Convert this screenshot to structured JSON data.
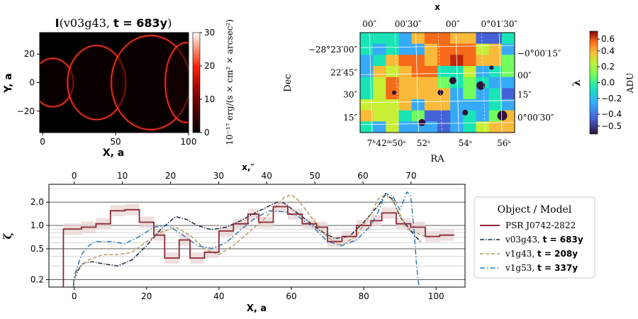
{
  "colors": {
    "psr": "#8b2a35",
    "v03g43": "#1a2b3f",
    "v1g43": "#b89a5a",
    "v1g53": "#2e7ab8",
    "band": "#e8d4d4",
    "hot": "#ff1a00"
  },
  "chart_data": [
    {
      "type": "heatmap",
      "title_main": "I",
      "title_args": "(v03g43, ",
      "title_t": "t = 683y",
      "title_close": ")",
      "xlabel": "X, a",
      "ylabel": "Y, a",
      "xlim": [
        -2,
        100
      ],
      "ylim": [
        -35,
        35
      ],
      "xticks": [
        {
          "value": 0,
          "label": "0"
        },
        {
          "value": 50,
          "label": "50"
        },
        {
          "value": 100,
          "label": "100"
        }
      ],
      "yticks": [
        {
          "value": 20,
          "label": "20"
        },
        {
          "value": 0,
          "label": "0"
        },
        {
          "value": -20,
          "label": "−20"
        }
      ],
      "shells": [
        {
          "cx": 7,
          "rx": 14,
          "ry": 17
        },
        {
          "cx": 37,
          "rx": 20,
          "ry": 26
        },
        {
          "cx": 74,
          "rx": 27,
          "ry": 33
        },
        {
          "cx": 98,
          "rx": 14,
          "ry": 28
        }
      ],
      "colorbar": {
        "label": "10⁻¹⁷ erg/(s × cm² × arcsec²)",
        "range": [
          0,
          30
        ],
        "ticks": [
          {
            "value": 0,
            "label": "0"
          },
          {
            "value": 10,
            "label": "10"
          },
          {
            "value": 20,
            "label": "20"
          },
          {
            "value": 30,
            "label": "30"
          }
        ]
      }
    },
    {
      "type": "heatmap",
      "title": "x",
      "xlabel": "RA",
      "ylabel": "Dec",
      "top_ticks": [
        "00″",
        "00′30″",
        "00″",
        "0°01′30″"
      ],
      "bottom_ticks": [
        "7ʰ42ᵐ50ˢ",
        "52ˢ",
        "54ˢ",
        "56ˢ"
      ],
      "left_ticks": [
        "−28°23′00″",
        "22′45″",
        "30″",
        "15″"
      ],
      "right_ticks": [
        "−0°00′15″",
        "00″",
        "15″",
        "0°00′30″"
      ],
      "colorbar": {
        "symbol": "λ",
        "label": "ADU",
        "range": [
          -0.65,
          0.65
        ],
        "ticks": [
          {
            "value": 0.4,
            "label": "0.4"
          },
          {
            "value": 0.2,
            "label": "0.2"
          },
          {
            "value": 0.0,
            "label": "0.0"
          },
          {
            "value": -0.2,
            "label": "−0.2"
          },
          {
            "value": -0.4,
            "label": "−0.4"
          }
        ],
        "extra_ticks": [
          {
            "value": 0.55,
            "label": "0.6"
          },
          {
            "value": -0.55,
            "label": "−0.5"
          }
        ]
      }
    },
    {
      "type": "line",
      "ylabel": "ζ",
      "xlabel": "X, a",
      "top_label": "x,″",
      "xlim": [
        -7,
        108
      ],
      "ylim_log": [
        0.16,
        3.4
      ],
      "xticks": [
        {
          "value": 0,
          "label": "0"
        },
        {
          "value": 20,
          "label": "20"
        },
        {
          "value": 40,
          "label": "40"
        },
        {
          "value": 60,
          "label": "60"
        },
        {
          "value": 80,
          "label": "80"
        },
        {
          "value": 100,
          "label": "100"
        }
      ],
      "top_ticks": [
        {
          "value": 0,
          "label": "0"
        },
        {
          "value": 10,
          "label": "10"
        },
        {
          "value": 20,
          "label": "20"
        },
        {
          "value": 30,
          "label": "30"
        },
        {
          "value": 40,
          "label": "40"
        },
        {
          "value": 50,
          "label": "50"
        },
        {
          "value": 60,
          "label": "60"
        },
        {
          "value": 70,
          "label": "70"
        }
      ],
      "top_scale": 1.33,
      "yticks": [
        {
          "value": 2.0,
          "label": "2.0"
        },
        {
          "value": 1.0,
          "label": "1.0"
        },
        {
          "value": 0.5,
          "label": "0.5"
        },
        {
          "value": 0.2,
          "label": "0.2"
        }
      ],
      "major_grid": [
        0.2,
        0.5,
        1.0,
        2.0
      ],
      "minor_grid": [
        0.3,
        0.4,
        0.6,
        0.7,
        0.8,
        0.9,
        3.0
      ],
      "psr": {
        "name": "PSR J0742-2822",
        "edges": [
          -3,
          2,
          6,
          10,
          14,
          18,
          22,
          25,
          29,
          32,
          36,
          40,
          44,
          48,
          51,
          55,
          59,
          63,
          67,
          70,
          74,
          78,
          82,
          85,
          89,
          93,
          97,
          101,
          105
        ],
        "values": [
          0.9,
          0.95,
          1.05,
          1.55,
          1.6,
          1.1,
          0.75,
          0.38,
          0.65,
          0.38,
          0.45,
          0.85,
          1.05,
          1.4,
          1.1,
          1.75,
          1.4,
          1.05,
          0.95,
          0.62,
          0.72,
          1.0,
          1.15,
          1.45,
          1.05,
          0.95,
          0.72,
          0.75
        ],
        "drop_to": 0.16
      },
      "series": [
        {
          "name": "v03g43",
          "label_t": "t = 683y",
          "style": "dashdot",
          "x": [
            -0.5,
            0,
            1,
            2,
            3,
            5,
            8,
            12,
            16,
            20,
            24,
            28,
            31,
            34,
            38,
            42,
            46,
            50,
            54,
            56,
            58,
            60,
            64,
            68,
            72,
            76,
            80,
            84,
            86,
            88,
            90,
            94,
            96
          ],
          "y": [
            0.12,
            0.2,
            0.26,
            0.31,
            0.33,
            0.34,
            0.32,
            0.3,
            0.36,
            0.55,
            0.9,
            1.3,
            1.2,
            1.0,
            0.88,
            0.95,
            1.15,
            1.45,
            1.8,
            2.0,
            1.95,
            1.65,
            1.2,
            0.85,
            0.68,
            0.72,
            1.1,
            1.8,
            2.5,
            2.2,
            1.3,
            0.75,
            0.6
          ]
        },
        {
          "name": "v1g43",
          "label_t": "t = 208y",
          "style": "dashed",
          "x": [
            -0.5,
            0,
            1,
            2,
            4,
            8,
            12,
            16,
            20,
            24,
            28,
            32,
            36,
            40,
            44,
            48,
            52,
            56,
            58,
            60,
            62,
            66,
            70,
            74,
            78,
            82,
            84,
            86,
            88,
            90,
            92,
            96,
            98
          ],
          "y": [
            0.12,
            0.2,
            0.28,
            0.3,
            0.36,
            0.42,
            0.42,
            0.45,
            0.62,
            0.82,
            0.95,
            0.75,
            0.5,
            0.42,
            0.55,
            0.8,
            1.15,
            1.8,
            2.3,
            2.5,
            2.1,
            1.2,
            0.7,
            0.55,
            0.75,
            1.4,
            2.2,
            2.5,
            2.1,
            1.4,
            0.9,
            0.75,
            0.7
          ]
        },
        {
          "name": "v1g53",
          "label_t": "t = 337y",
          "style": "dashdot",
          "x": [
            -0.5,
            0,
            2,
            4,
            6,
            8,
            10,
            14,
            18,
            22,
            26,
            30,
            34,
            38,
            42,
            46,
            50,
            54,
            58,
            62,
            66,
            70,
            74,
            78,
            82,
            84,
            86,
            88,
            90,
            92,
            93,
            94,
            94.5,
            95,
            95.5
          ],
          "y": [
            0.12,
            0.22,
            0.42,
            0.55,
            0.62,
            0.62,
            0.62,
            0.58,
            0.72,
            0.95,
            1.0,
            0.75,
            0.55,
            0.5,
            0.6,
            0.88,
            1.25,
            1.55,
            1.5,
            1.3,
            0.95,
            0.62,
            0.55,
            0.65,
            1.0,
            1.5,
            2.6,
            2.4,
            1.6,
            2.7,
            2.4,
            0.8,
            0.35,
            0.2,
            0.14
          ]
        }
      ],
      "legend": {
        "title": "Object / Model",
        "position": "right"
      }
    }
  ]
}
